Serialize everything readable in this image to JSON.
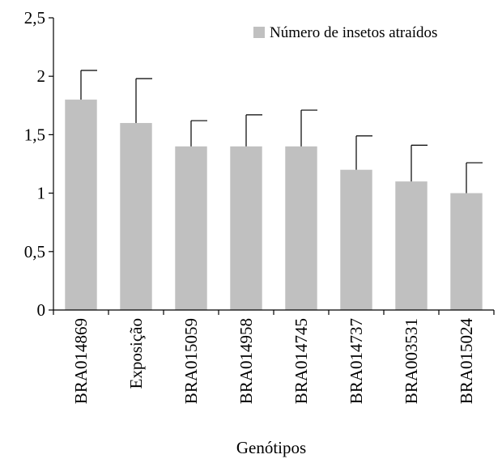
{
  "chart_data": {
    "type": "bar",
    "categories": [
      "BRA014869",
      "Exposição",
      "BRA015059",
      "BRA014958",
      "BRA014745",
      "BRA014737",
      "BRA003531",
      "BRA015024"
    ],
    "series": [
      {
        "name": "Número de insetos atraídos",
        "values": [
          1.8,
          1.6,
          1.4,
          1.4,
          1.4,
          1.2,
          1.1,
          1.0
        ],
        "error_upper": [
          2.05,
          1.98,
          1.62,
          1.67,
          1.71,
          1.49,
          1.41,
          1.26
        ]
      }
    ],
    "xlabel": "Genótipos",
    "ylabel": "",
    "ylim": [
      0,
      2.5
    ],
    "yticks": [
      "0",
      "0,5",
      "1",
      "1,5",
      "2",
      "2,5"
    ],
    "ytick_values": [
      0,
      0.5,
      1,
      1.5,
      2,
      2.5
    ],
    "grid": false,
    "legend_position": "top-right",
    "bar_color": "#c0c0c0",
    "axis_color": "#000000"
  }
}
